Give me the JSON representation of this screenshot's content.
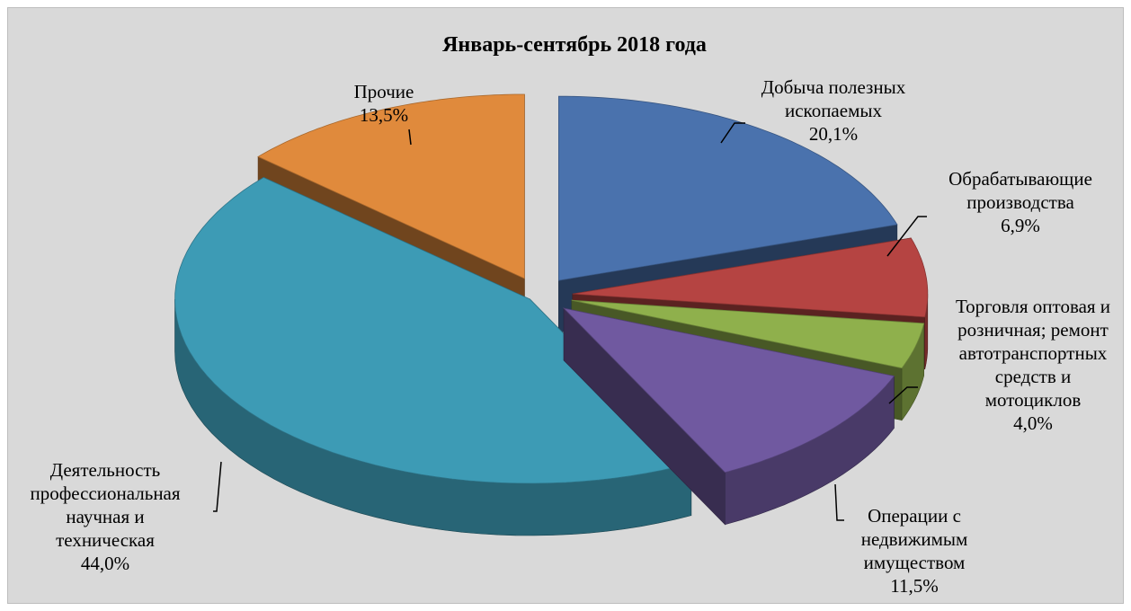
{
  "chart_data": {
    "type": "pie",
    "title": "Январь-сентябрь 2018 года",
    "slices": [
      {
        "label_lines": [
          "Добыча полезных",
          "ископаемых"
        ],
        "value": 20.1,
        "value_label": "20,1%",
        "color": "#4a72ad"
      },
      {
        "label_lines": [
          "Обрабатывающие",
          "производства"
        ],
        "value": 6.9,
        "value_label": "6,9%",
        "color": "#b54442"
      },
      {
        "label_lines": [
          "Торговля оптовая и",
          "розничная; ремонт",
          "автотранспортных",
          "средств и",
          "мотоциклов"
        ],
        "value": 4.0,
        "value_label": "4,0%",
        "color": "#8fb04c"
      },
      {
        "label_lines": [
          "Операции с",
          "недвижимым",
          "имуществом"
        ],
        "value": 11.5,
        "value_label": "11,5%",
        "color": "#7059a0"
      },
      {
        "label_lines": [
          "Деятельность",
          "профессиональная",
          "научная и",
          "техническая"
        ],
        "value": 44.0,
        "value_label": "44,0%",
        "color": "#3d9bb5"
      },
      {
        "label_lines": [
          "Прочие"
        ],
        "value": 13.5,
        "value_label": "13,5%",
        "color": "#e08a3c"
      }
    ],
    "legend": "none",
    "style": "3d-exploded"
  }
}
